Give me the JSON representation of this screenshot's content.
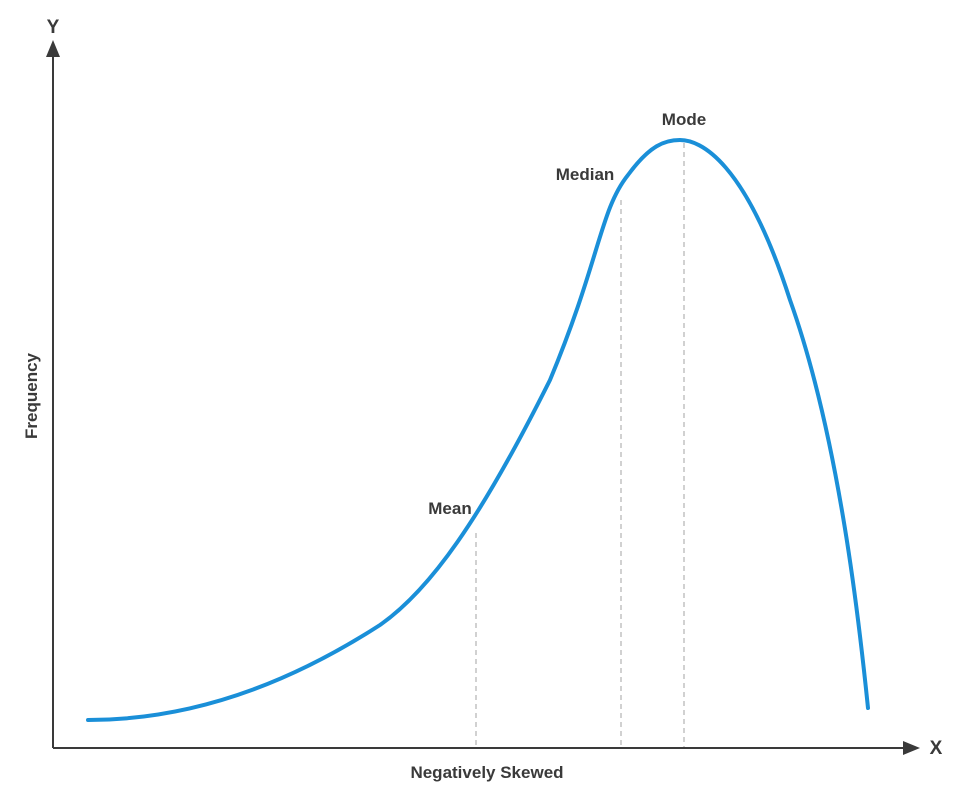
{
  "colors": {
    "curve": "#1a8fd8",
    "axis": "#3a3a3a",
    "guide": "#b8b8b8",
    "text": "#3a3a3a"
  },
  "axes": {
    "x_letter": "X",
    "y_letter": "Y",
    "x_title": "Negatively Skewed",
    "y_title": "Frequency"
  },
  "markers": {
    "mean": "Mean",
    "median": "Median",
    "mode": "Mode"
  }
}
